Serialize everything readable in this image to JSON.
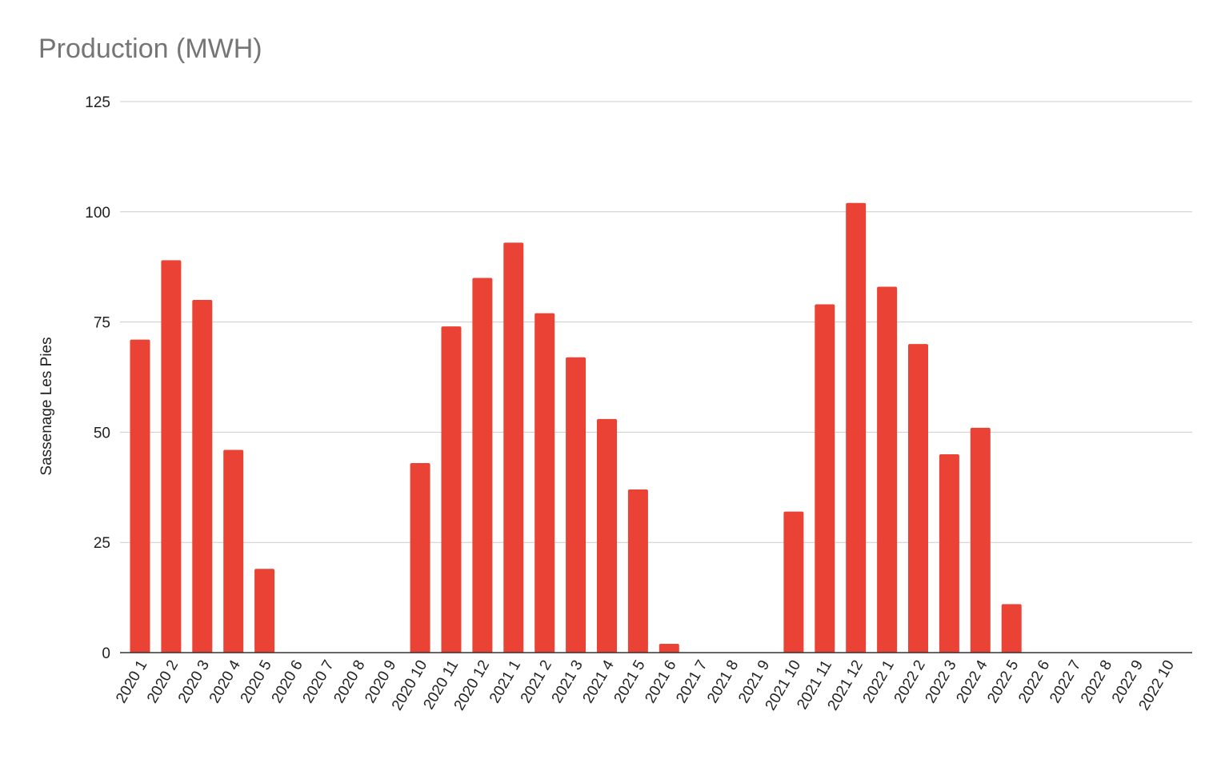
{
  "chart_data": {
    "type": "bar",
    "title": "Production (MWH)",
    "xlabel": "",
    "ylabel": "Sassenage Les Pies",
    "ylim": [
      0,
      125
    ],
    "yticks": [
      0,
      25,
      50,
      75,
      100,
      125
    ],
    "grid": true,
    "legend": "none",
    "categories": [
      "2020 1",
      "2020 2",
      "2020 3",
      "2020 4",
      "2020 5",
      "2020 6",
      "2020 7",
      "2020 8",
      "2020 9",
      "2020 10",
      "2020 11",
      "2020 12",
      "2021 1",
      "2021 2",
      "2021 3",
      "2021 4",
      "2021 5",
      "2021 6",
      "2021 7",
      "2021 8",
      "2021 9",
      "2021 10",
      "2021 11",
      "2021 12",
      "2022 1",
      "2022 2",
      "2022 3",
      "2022 4",
      "2022 5",
      "2022 6",
      "2022 7",
      "2022 8",
      "2022 9",
      "2022 10"
    ],
    "series": [
      {
        "color": "#ea4335",
        "values": [
          71,
          89,
          80,
          46,
          19,
          0,
          0,
          0,
          0,
          43,
          74,
          85,
          93,
          77,
          67,
          53,
          37,
          2,
          0,
          0,
          0,
          32,
          79,
          102,
          83,
          70,
          45,
          51,
          11,
          0,
          0,
          0,
          0,
          0
        ]
      }
    ]
  }
}
